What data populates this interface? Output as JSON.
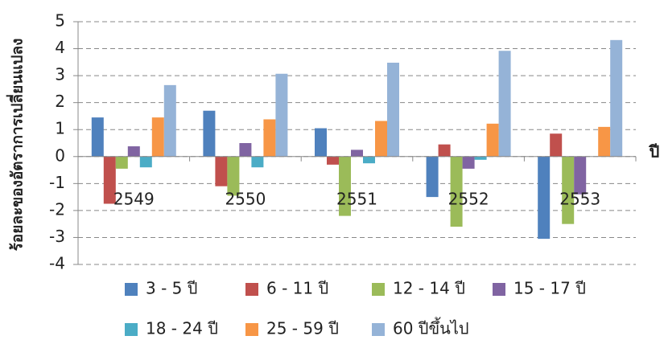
{
  "chart_data": {
    "type": "bar",
    "y_label": "ร้อยละของอัตราการเปลี่ยนแปลง",
    "x_label": "ปี",
    "categories": [
      "2549",
      "2550",
      "2551",
      "2552",
      "2553"
    ],
    "series": [
      {
        "name": "3 - 5 ปี",
        "color": "#4f81bd",
        "values": [
          1.45,
          1.7,
          1.05,
          -1.5,
          -3.05
        ]
      },
      {
        "name": "6 - 11 ปี",
        "color": "#c0504d",
        "values": [
          -1.75,
          -1.1,
          -0.3,
          0.45,
          0.85
        ]
      },
      {
        "name": "12 - 14 ปี",
        "color": "#9bbb59",
        "values": [
          -0.45,
          -1.45,
          -2.2,
          -2.6,
          -2.5
        ]
      },
      {
        "name": "15 - 17 ปี",
        "color": "#8064a2",
        "values": [
          0.38,
          0.5,
          0.25,
          -0.45,
          -1.4
        ]
      },
      {
        "name": "18 - 24 ปี",
        "color": "#4bacc6",
        "values": [
          -0.4,
          -0.4,
          -0.25,
          -0.12,
          0
        ]
      },
      {
        "name": "25 - 59 ปี",
        "color": "#f79646",
        "values": [
          1.45,
          1.38,
          1.32,
          1.22,
          1.1
        ]
      },
      {
        "name": "60 ปีขึ้นไป",
        "color": "#95b3d7",
        "values": [
          2.65,
          3.07,
          3.48,
          3.92,
          4.32
        ]
      }
    ],
    "ylim": [
      -4,
      5
    ],
    "yticks": [
      -4,
      -3,
      -2,
      -1,
      0,
      1,
      2,
      3,
      4,
      5
    ],
    "grid": true,
    "legend": "bottom"
  }
}
